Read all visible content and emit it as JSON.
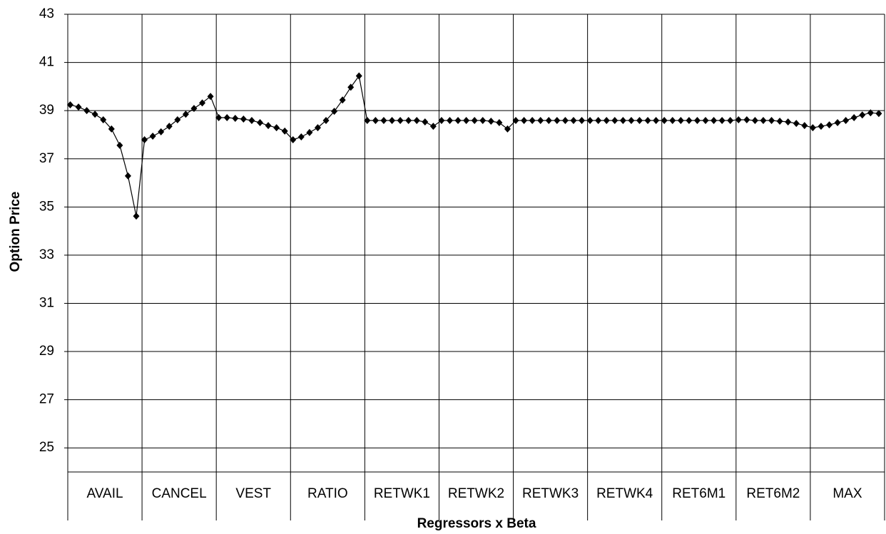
{
  "chart_data": {
    "type": "line",
    "y_label": "Option Price",
    "x_label": "Regressors x Beta",
    "color": "#000000",
    "ylim": [
      24,
      43
    ],
    "yticks": [
      25,
      27,
      29,
      31,
      33,
      35,
      37,
      39,
      41,
      43
    ],
    "grid": true,
    "groups": [
      {
        "label": "AVAIL",
        "values": [
          39.24,
          39.15,
          39.0,
          38.85,
          38.62,
          38.24,
          37.56,
          36.29,
          34.62
        ]
      },
      {
        "label": "CANCEL",
        "values": [
          37.79,
          37.94,
          38.12,
          38.35,
          38.62,
          38.85,
          39.09,
          39.32,
          39.59
        ]
      },
      {
        "label": "VEST",
        "values": [
          38.71,
          38.71,
          38.68,
          38.65,
          38.59,
          38.5,
          38.38,
          38.29,
          38.15
        ]
      },
      {
        "label": "RATIO",
        "values": [
          37.79,
          37.91,
          38.09,
          38.29,
          38.59,
          38.97,
          39.44,
          39.97,
          40.44
        ]
      },
      {
        "label": "RETWK1",
        "values": [
          38.59,
          38.59,
          38.59,
          38.59,
          38.59,
          38.59,
          38.59,
          38.53,
          38.35
        ]
      },
      {
        "label": "RETWK2",
        "values": [
          38.59,
          38.59,
          38.59,
          38.59,
          38.59,
          38.59,
          38.56,
          38.5,
          38.24
        ]
      },
      {
        "label": "RETWK3",
        "values": [
          38.59,
          38.59,
          38.59,
          38.59,
          38.59,
          38.59,
          38.59,
          38.59,
          38.59
        ]
      },
      {
        "label": "RETWK4",
        "values": [
          38.59,
          38.59,
          38.59,
          38.59,
          38.59,
          38.59,
          38.59,
          38.59,
          38.59
        ]
      },
      {
        "label": "RET6M1",
        "values": [
          38.59,
          38.59,
          38.59,
          38.59,
          38.59,
          38.59,
          38.59,
          38.59,
          38.59
        ]
      },
      {
        "label": "RET6M2",
        "values": [
          38.62,
          38.62,
          38.59,
          38.59,
          38.59,
          38.56,
          38.53,
          38.47,
          38.38
        ]
      },
      {
        "label": "MAX",
        "values": [
          38.29,
          38.35,
          38.41,
          38.5,
          38.59,
          38.71,
          38.82,
          38.91,
          38.88
        ]
      }
    ]
  }
}
